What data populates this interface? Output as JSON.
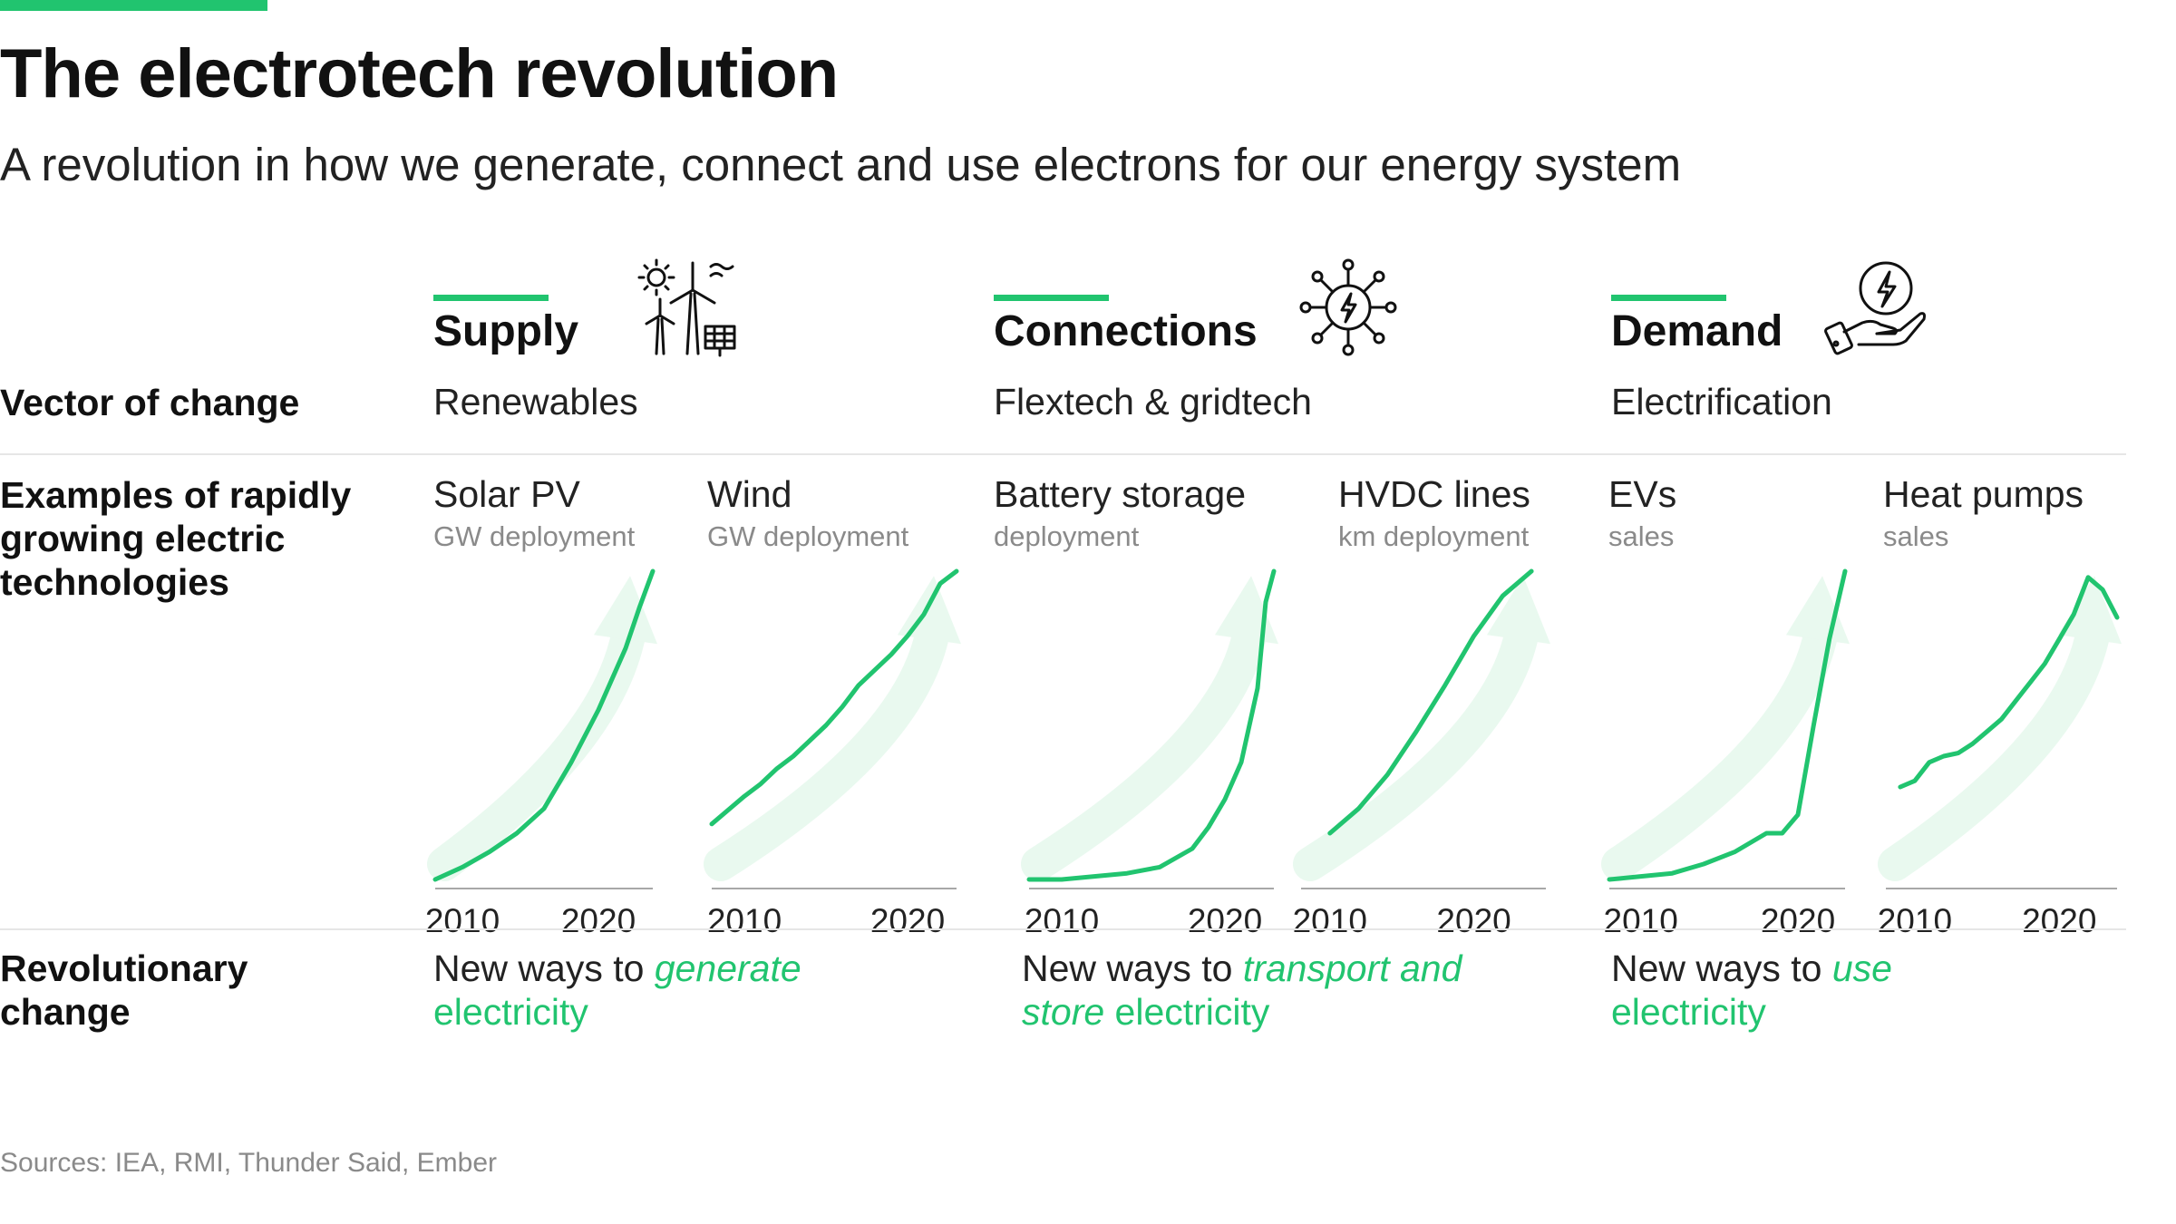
{
  "header": {
    "title": "The electrotech revolution",
    "subtitle": "A revolution in how we generate, connect and use electrons for our energy system"
  },
  "rows": {
    "vector_label": "Vector of change",
    "examples_label": "Examples of rapidly growing electric technologies",
    "revolution_label": "Revolutionary change"
  },
  "columns": [
    {
      "heading": "Supply",
      "icon": "wind-solar-icon",
      "vector": "Renewables",
      "revolution_pre": "New ways to ",
      "revolution_accent": "generate",
      "revolution_post": " electricity"
    },
    {
      "heading": "Connections",
      "icon": "network-bolt-icon",
      "vector": "Flextech & gridtech",
      "revolution_pre": "New ways to ",
      "revolution_accent": "transport and store",
      "revolution_post": " electricity"
    },
    {
      "heading": "Demand",
      "icon": "hand-bolt-icon",
      "vector": "Electrification",
      "revolution_pre": "New ways to ",
      "revolution_accent": "use",
      "revolution_post": " electricity"
    }
  ],
  "colors": {
    "accent": "#21c46f",
    "arrow": "#e9f9ef",
    "axis": "#a8a8a8",
    "muted": "#8a8a8a"
  },
  "chart_data": [
    {
      "type": "line",
      "title": "Solar PV",
      "subtitle": "GW deployment",
      "x": [
        2008,
        2010,
        2012,
        2014,
        2016,
        2018,
        2020,
        2022,
        2023,
        2024
      ],
      "y": [
        0.0,
        0.04,
        0.09,
        0.15,
        0.23,
        0.38,
        0.55,
        0.75,
        0.88,
        1.0
      ],
      "xticks": [
        2010,
        2020
      ],
      "xlim": [
        2008,
        2024
      ],
      "ylim": [
        0,
        1
      ]
    },
    {
      "type": "line",
      "title": "Wind",
      "subtitle": "GW deployment",
      "x": [
        2008,
        2010,
        2011,
        2012,
        2013,
        2014,
        2015,
        2016,
        2017,
        2018,
        2019,
        2020,
        2021,
        2022,
        2023
      ],
      "y": [
        0.18,
        0.27,
        0.31,
        0.36,
        0.4,
        0.45,
        0.5,
        0.56,
        0.63,
        0.68,
        0.73,
        0.79,
        0.86,
        0.96,
        1.0
      ],
      "xticks": [
        2010,
        2020
      ],
      "xlim": [
        2008,
        2023
      ],
      "ylim": [
        0,
        1
      ]
    },
    {
      "type": "line",
      "title": "Battery storage",
      "subtitle": "deployment",
      "x": [
        2008,
        2010,
        2012,
        2014,
        2016,
        2018,
        2019,
        2020,
        2021,
        2022,
        2022.5,
        2023
      ],
      "y": [
        0.0,
        0.0,
        0.01,
        0.02,
        0.04,
        0.1,
        0.17,
        0.26,
        0.38,
        0.62,
        0.9,
        1.0
      ],
      "xticks": [
        2010,
        2020
      ],
      "xlim": [
        2008,
        2023
      ],
      "ylim": [
        0,
        1
      ]
    },
    {
      "type": "line",
      "title": "HVDC lines",
      "subtitle": "km deployment",
      "x": [
        2010,
        2012,
        2014,
        2016,
        2018,
        2020,
        2022,
        2024
      ],
      "y": [
        0.15,
        0.23,
        0.34,
        0.48,
        0.63,
        0.79,
        0.92,
        1.0
      ],
      "xticks": [
        2010,
        2020
      ],
      "xlim": [
        2008,
        2025
      ],
      "ylim": [
        0,
        1
      ]
    },
    {
      "type": "line",
      "title": "EVs",
      "subtitle": "sales",
      "x": [
        2008,
        2010,
        2012,
        2014,
        2016,
        2018,
        2019,
        2020,
        2021,
        2022,
        2023
      ],
      "y": [
        0.0,
        0.01,
        0.02,
        0.05,
        0.09,
        0.15,
        0.15,
        0.21,
        0.5,
        0.78,
        1.0
      ],
      "xticks": [
        2010,
        2020
      ],
      "xlim": [
        2008,
        2023
      ],
      "ylim": [
        0,
        1
      ]
    },
    {
      "type": "line",
      "title": "Heat pumps",
      "subtitle": "sales",
      "x": [
        2009,
        2010,
        2011,
        2012,
        2013,
        2014,
        2015,
        2016,
        2017,
        2018,
        2019,
        2020,
        2021,
        2022,
        2023,
        2024
      ],
      "y": [
        0.3,
        0.32,
        0.38,
        0.4,
        0.41,
        0.44,
        0.48,
        0.52,
        0.58,
        0.64,
        0.7,
        0.78,
        0.86,
        0.98,
        0.94,
        0.85
      ],
      "xticks": [
        2010,
        2020
      ],
      "xlim": [
        2008,
        2024
      ],
      "ylim": [
        0,
        1
      ]
    }
  ],
  "footer": {
    "sources": "Sources: IEA, RMI, Thunder Said, Ember"
  }
}
